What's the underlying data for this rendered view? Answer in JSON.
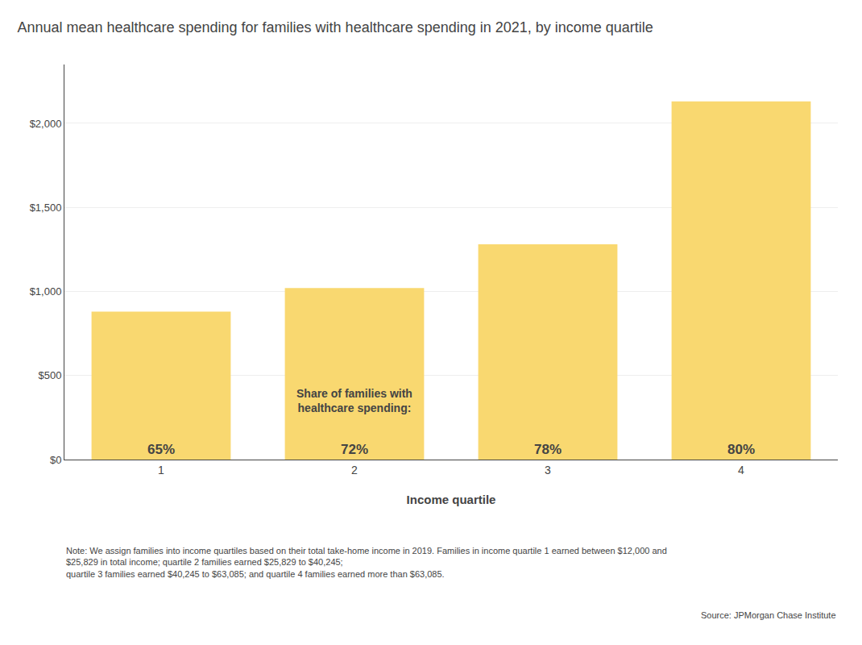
{
  "chart_data": {
    "type": "bar",
    "title": "Annual mean healthcare spending for families with healthcare spending in 2021, by income quartile",
    "categories": [
      "1",
      "2",
      "3",
      "4"
    ],
    "values": [
      880,
      1020,
      1280,
      2130
    ],
    "color": "#F9D870",
    "xlabel": "Income quartile",
    "ylim": [
      0,
      2350
    ],
    "yticks": [
      {
        "value": 0,
        "label": "$0"
      },
      {
        "value": 500,
        "label": "$500"
      },
      {
        "value": 1000,
        "label": "$1,000"
      },
      {
        "value": 1500,
        "label": "$1,500"
      },
      {
        "value": 2000,
        "label": "$2,000"
      }
    ],
    "grid": true,
    "bar_labels": [
      "65%",
      "72%",
      "78%",
      "80%"
    ],
    "annotation": "Share of families with\nhealthcare spending:",
    "note": [
      "Note: We assign families into income quartiles based on their total take-home income in 2019. Families in income quartile 1 earned between $12,000 and $25,829 in total income; quartile 2 families earned $25,829 to $40,245;",
      "quartile 3 families earned $40,245 to $63,085; and quartile 4 families earned more than $63,085."
    ],
    "source": "Source: JPMorgan Chase Institute"
  }
}
